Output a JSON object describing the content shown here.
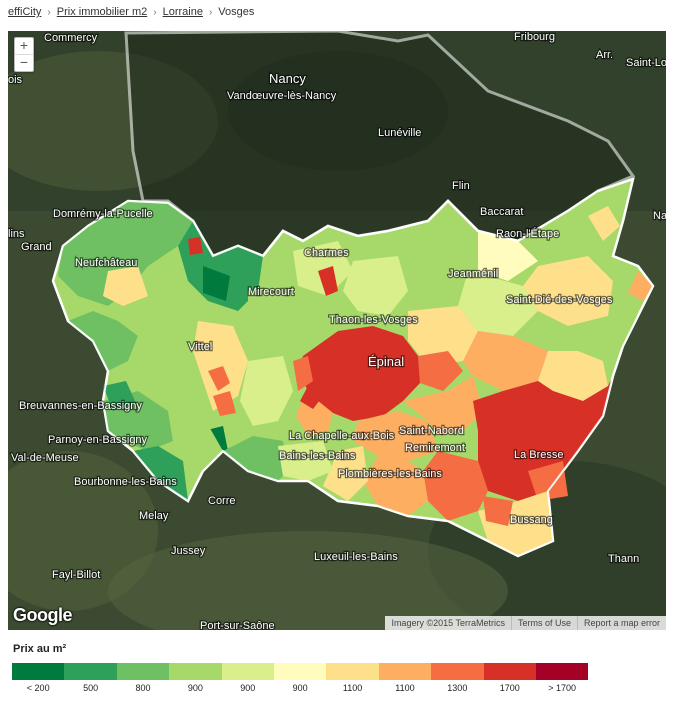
{
  "breadcrumb": {
    "items": [
      {
        "label": "effiCity",
        "link": true
      },
      {
        "label": "Prix immobilier m2",
        "link": true
      },
      {
        "label": "Lorraine",
        "link": true
      },
      {
        "label": "Vosges",
        "link": false
      }
    ]
  },
  "map": {
    "zoom_in": "+",
    "zoom_out": "−",
    "attribution": [
      "Imagery ©2015 TerraMetrics",
      "Terms of Use",
      "Report a map error"
    ],
    "google_logo": "Google",
    "cities": [
      {
        "name": "Commercy",
        "big": false
      },
      {
        "name": "Fribourg",
        "big": false
      },
      {
        "name": "Arr.",
        "big": false
      },
      {
        "name": "Saint-Lo",
        "big": false
      },
      {
        "name": "ois",
        "big": false
      },
      {
        "name": "Nancy",
        "big": true
      },
      {
        "name": "Vandœuvre-lès-Nancy",
        "big": false
      },
      {
        "name": "Lunéville",
        "big": false
      },
      {
        "name": "Flin",
        "big": false
      },
      {
        "name": "Baccarat",
        "big": false
      },
      {
        "name": "Raon-l'Étape",
        "big": false
      },
      {
        "name": "Na",
        "big": false
      },
      {
        "name": "Domrémy-la-Pucelle",
        "big": false
      },
      {
        "name": "lins",
        "big": false
      },
      {
        "name": "Grand",
        "big": false
      },
      {
        "name": "Neufchâteau",
        "big": false
      },
      {
        "name": "Charmes",
        "big": false
      },
      {
        "name": "Jeanménil",
        "big": false
      },
      {
        "name": "Mirecourt",
        "big": false
      },
      {
        "name": "Saint-Dié-des-Vosges",
        "big": false
      },
      {
        "name": "Thaon-les-Vosges",
        "big": false
      },
      {
        "name": "Vittel",
        "big": false
      },
      {
        "name": "Épinal",
        "big": true
      },
      {
        "name": "Breuvannes-en-Bassigny",
        "big": false
      },
      {
        "name": "Parnoy-en-Bassigny",
        "big": false
      },
      {
        "name": "La Chapelle-aux-Bois",
        "big": false
      },
      {
        "name": "Saint-Nabord",
        "big": false
      },
      {
        "name": "Remiremont",
        "big": false
      },
      {
        "name": "Val-de-Meuse",
        "big": false
      },
      {
        "name": "Bains-les-Bains",
        "big": false
      },
      {
        "name": "La Bresse",
        "big": false
      },
      {
        "name": "Plombières-les-Bains",
        "big": false
      },
      {
        "name": "Bourbonne-les-Bains",
        "big": false
      },
      {
        "name": "Corre",
        "big": false
      },
      {
        "name": "Melay",
        "big": false
      },
      {
        "name": "Bussang",
        "big": false
      },
      {
        "name": "Jussey",
        "big": false
      },
      {
        "name": "Luxeuil-les-Bains",
        "big": false
      },
      {
        "name": "Thann",
        "big": false
      },
      {
        "name": "Fayl-Billot",
        "big": false
      },
      {
        "name": "Port-sur-Saône",
        "big": false
      }
    ]
  },
  "legend": {
    "title": "Prix au m²",
    "classes": [
      {
        "label": "< 200",
        "color": "#007a3d"
      },
      {
        "label": "500",
        "color": "#2fa05a"
      },
      {
        "label": "800",
        "color": "#6fc063"
      },
      {
        "label": "900",
        "color": "#a6d96a"
      },
      {
        "label": "900",
        "color": "#d9ef8b"
      },
      {
        "label": "900",
        "color": "#fffcbd"
      },
      {
        "label": "1100",
        "color": "#fee08b"
      },
      {
        "label": "1100",
        "color": "#fdae61"
      },
      {
        "label": "1300",
        "color": "#f46d43"
      },
      {
        "label": "1700",
        "color": "#d73027"
      },
      {
        "label": "> 1700",
        "color": "#a50026"
      }
    ]
  }
}
